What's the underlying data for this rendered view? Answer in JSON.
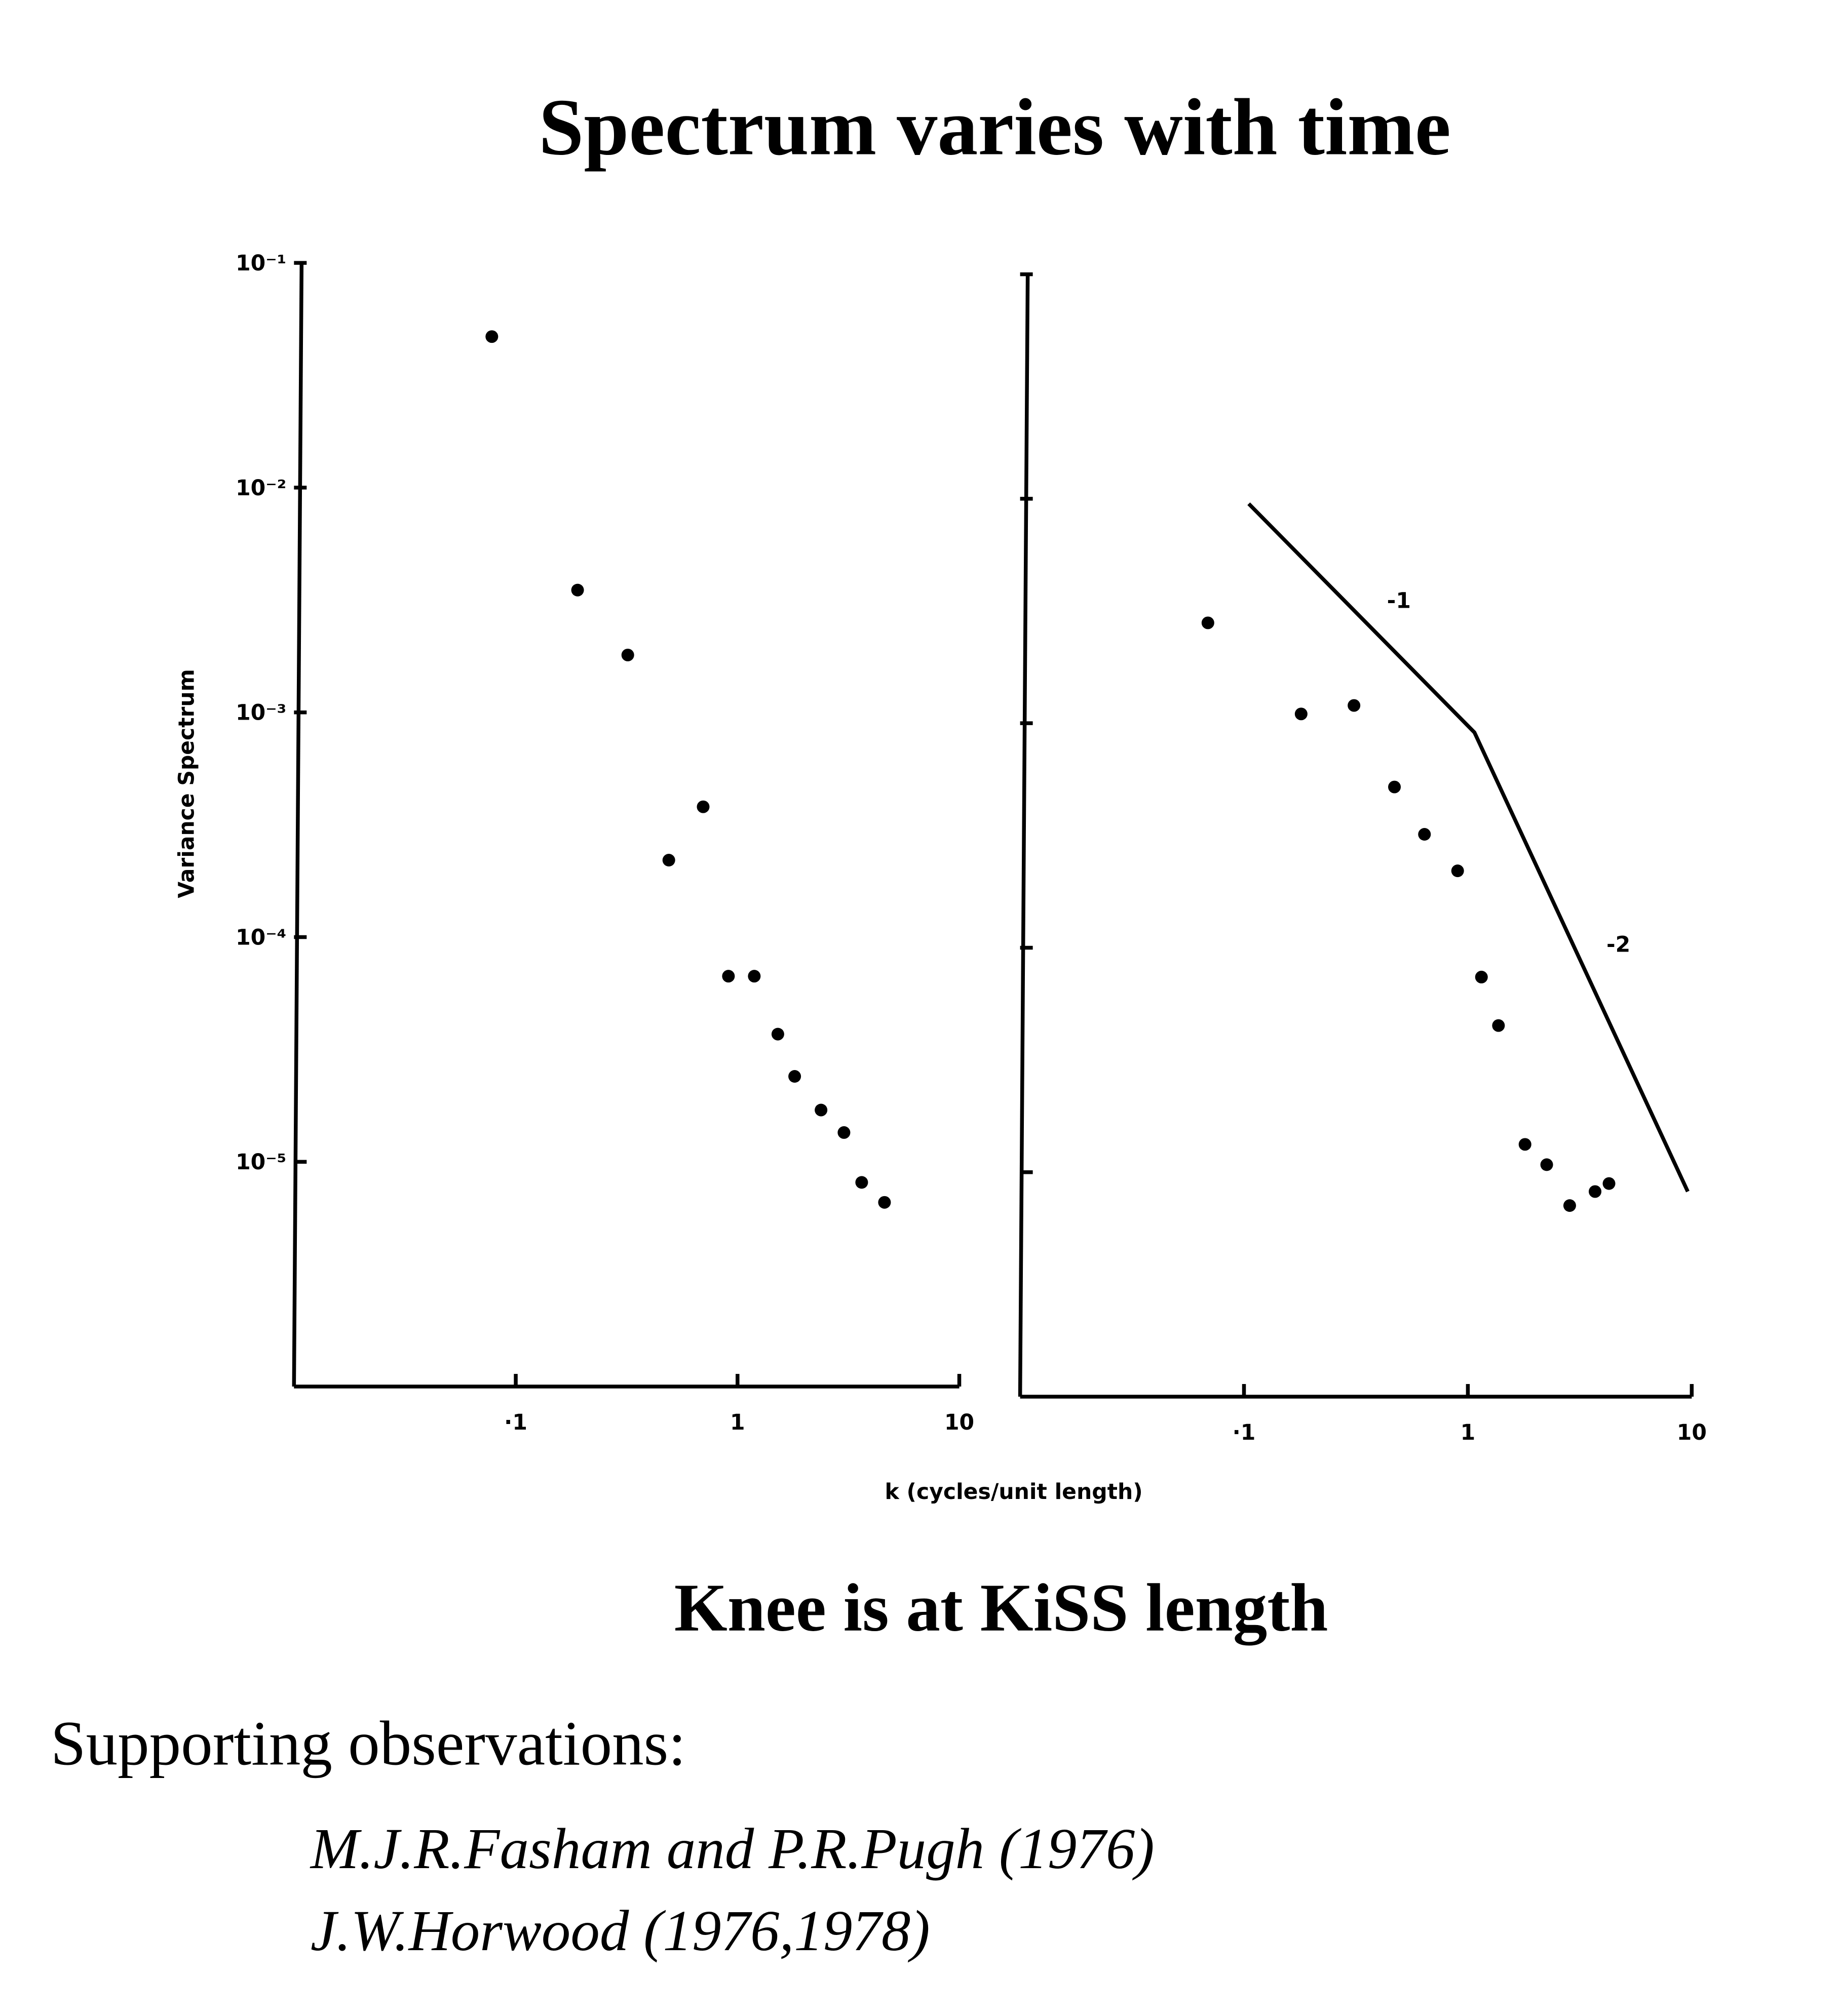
{
  "header": {
    "title": "Spectrum varies with time"
  },
  "chart_data": [
    {
      "type": "scatter",
      "xscale": "log",
      "yscale": "log",
      "color": "#000000",
      "ylabel": "Variance Spectrum",
      "xlabel": "k (cycles/unit length)",
      "xlim": [
        0.01,
        10
      ],
      "ylim": [
        1e-06,
        0.1
      ],
      "xticks": [
        {
          "value": 0.1,
          "label": "·1"
        },
        1,
        10
      ],
      "yticks": [
        {
          "value": 0.1,
          "label": "10⁻¹"
        },
        {
          "value": 0.01,
          "label": "10⁻²"
        },
        {
          "value": 0.001,
          "label": "10⁻³"
        },
        {
          "value": 0.0001,
          "label": "10⁻⁴"
        },
        {
          "value": 1e-05,
          "label": "10⁻⁵"
        }
      ],
      "show_ytick_labels": true,
      "x": [
        0.078,
        0.19,
        0.32,
        0.7,
        0.49,
        0.91,
        1.19,
        1.52,
        1.81,
        2.38,
        3.02,
        3.63,
        4.6
      ],
      "values": [
        0.047,
        0.0035,
        0.0018,
        0.00038,
        0.00022,
        6.7e-05,
        6.7e-05,
        3.7e-05,
        2.4e-05,
        1.7e-05,
        1.35e-05,
        8.1e-06,
        6.6e-06
      ]
    },
    {
      "type": "scatter",
      "xscale": "log",
      "yscale": "log",
      "color": "#000000",
      "xlim": [
        0.01,
        10
      ],
      "ylim": [
        1e-06,
        0.1
      ],
      "xticks": [
        {
          "value": 0.1,
          "label": "·1"
        },
        1,
        10
      ],
      "yticks": [
        0.1,
        0.01,
        0.001,
        0.0001,
        1e-05
      ],
      "show_ytick_labels": false,
      "x": [
        0.069,
        0.18,
        0.31,
        0.47,
        0.64,
        0.9,
        1.15,
        1.37,
        1.8,
        2.25,
        2.85,
        3.7,
        4.27
      ],
      "values": [
        0.0028,
        0.0011,
        0.0012,
        0.00052,
        0.00032,
        0.00022,
        7.4e-05,
        4.5e-05,
        1.33e-05,
        1.08e-05,
        7.1e-06,
        8.2e-06,
        8.9e-06
      ],
      "line": {
        "x": [
          0.105,
          1.07,
          9.6
        ],
        "values": [
          0.0095,
          0.00091,
          8.2e-06
        ]
      },
      "annotations": [
        "-1",
        "-2"
      ]
    }
  ],
  "conclusion": "Knee is at KiSS length",
  "supporting": {
    "heading": "Supporting observations:",
    "refs": [
      "M.J.R.Fasham and P.R.Pugh (1976)",
      "J.W.Horwood (1976,1978)"
    ]
  }
}
